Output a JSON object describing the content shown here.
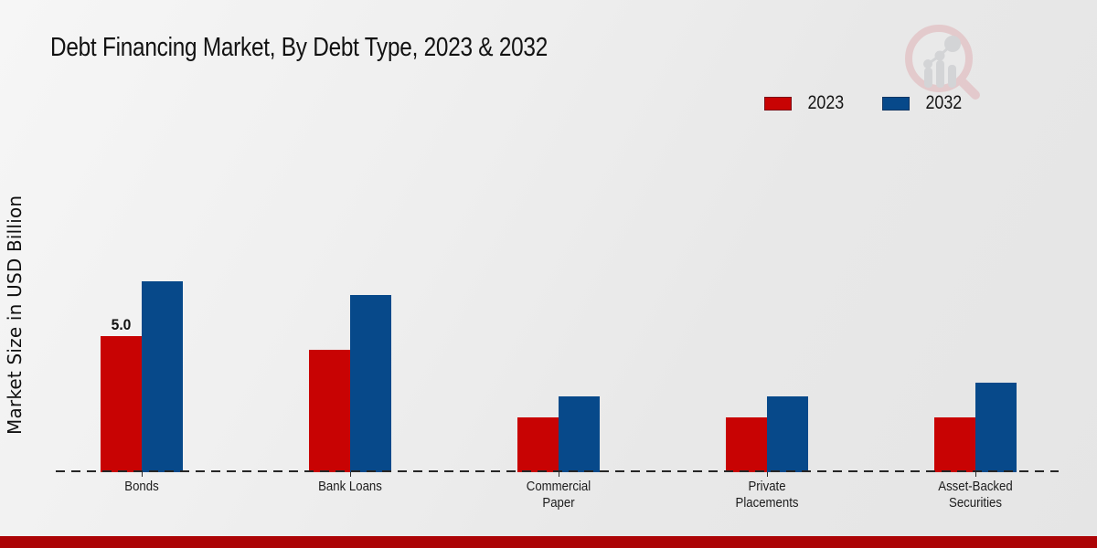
{
  "page": {
    "watermark_icon": "magnifier-bar-chart-logo",
    "footer_band_color": "#ac0406",
    "background_color": "#ebebeb"
  },
  "chart_data": {
    "type": "bar",
    "title": "Debt Financing Market, By Debt Type, 2023 & 2032",
    "xlabel": "",
    "ylabel": "Market Size in USD Billion",
    "categories": [
      "Bonds",
      "Bank Loans",
      "Commercial Paper",
      "Private Placements",
      "Asset-Backed Securities"
    ],
    "series": [
      {
        "name": "2023",
        "color": "#c80303",
        "values": [
          5.0,
          4.5,
          2.0,
          2.0,
          2.0
        ]
      },
      {
        "name": "2032",
        "color": "#07498a",
        "values": [
          7.0,
          6.5,
          2.8,
          2.8,
          3.3
        ]
      }
    ],
    "annotations": [
      {
        "category_index": 0,
        "series_index": 0,
        "text": "5.0"
      }
    ],
    "ylim": [
      0,
      7.5
    ],
    "grid": false,
    "legend_position": "top-right",
    "baseline_style": "dashed"
  }
}
